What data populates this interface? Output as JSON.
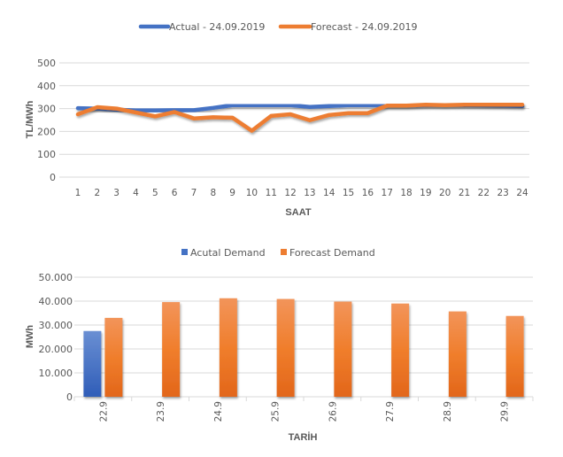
{
  "chart_data": [
    {
      "type": "line",
      "legend_position": "top",
      "xlabel": "SAAT",
      "ylabel": "TL/MWh",
      "ylim": [
        0,
        500
      ],
      "yticks": [
        "0",
        "100",
        "200",
        "300",
        "400",
        "500"
      ],
      "yticks_values": [
        0,
        100,
        200,
        300,
        400,
        500
      ],
      "grid": true,
      "categories": [
        "1",
        "2",
        "3",
        "4",
        "5",
        "6",
        "7",
        "8",
        "9",
        "10",
        "11",
        "12",
        "13",
        "14",
        "15",
        "16",
        "17",
        "18",
        "19",
        "20",
        "21",
        "22",
        "23",
        "24"
      ],
      "series": [
        {
          "name": "Actual - 24.09.2019",
          "color": "#4472C4",
          "values": [
            302,
            300,
            295,
            292,
            292,
            293,
            293,
            303,
            315,
            315,
            315,
            315,
            307,
            311,
            315,
            315,
            313,
            313,
            315,
            316,
            315,
            314,
            313,
            311
          ]
        },
        {
          "name": "Forecast - 24.09.2019",
          "color": "#ED7D31",
          "values": [
            275,
            306,
            300,
            283,
            266,
            285,
            257,
            262,
            260,
            203,
            268,
            275,
            249,
            272,
            280,
            280,
            313,
            313,
            317,
            315,
            317,
            317,
            317,
            317
          ]
        }
      ]
    },
    {
      "type": "bar",
      "legend_position": "top",
      "xlabel": "TARİH",
      "ylabel": "MWh",
      "ylim": [
        0,
        50000
      ],
      "yticks": [
        "0",
        "10.000",
        "20.000",
        "30.000",
        "40.000",
        "50.000"
      ],
      "yticks_values": [
        0,
        10000,
        20000,
        30000,
        40000,
        50000
      ],
      "grid": true,
      "categories": [
        "22.9",
        "23.9",
        "24.9",
        "25.9",
        "26.9",
        "27.9",
        "28.9",
        "29.9"
      ],
      "series": [
        {
          "name": "Acutal Demand",
          "color": "#4472C4",
          "values": [
            27500,
            null,
            null,
            null,
            null,
            null,
            null,
            null
          ]
        },
        {
          "name": "Forecast Demand",
          "color": "#ED7D31",
          "values": [
            33000,
            39600,
            41200,
            40900,
            39800,
            39000,
            35700,
            33800
          ]
        }
      ]
    }
  ]
}
